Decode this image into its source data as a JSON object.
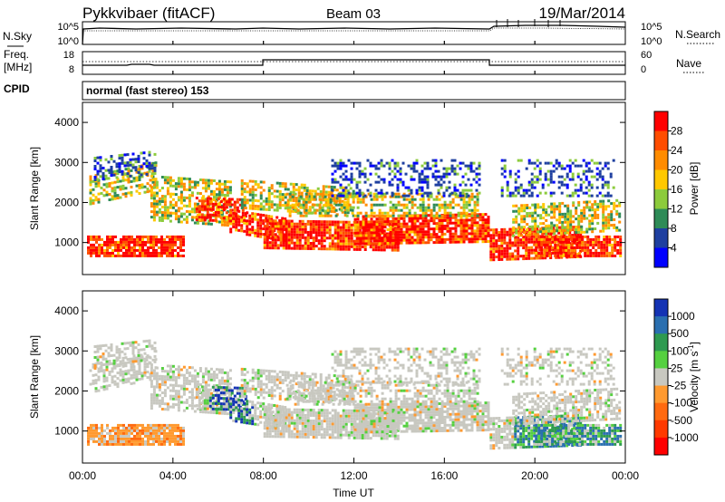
{
  "header": {
    "title": "Pykkvibaer (fitACF)",
    "beam": "Beam 03",
    "date": "19/Mar/2014"
  },
  "strips": {
    "nsky": {
      "label": "N.Sky",
      "ticks": [
        "10^5",
        "10^0"
      ],
      "right_ticks": [
        "10^5",
        "10^0"
      ],
      "right_label": "N.Search"
    },
    "freq": {
      "label_line1": "Freq.",
      "label_line2": "[MHz]",
      "ticks": [
        "18",
        "8"
      ],
      "right_ticks": [
        "60",
        "0"
      ],
      "right_label": "Nave"
    },
    "cpid": {
      "label": "CPID",
      "text": "normal (fast stereo) 153"
    }
  },
  "chart_data": [
    {
      "type": "heatmap",
      "title": "",
      "xlabel": "Time UT",
      "ylabel": "Slant Range [km]",
      "x_ticks": [
        "00:00",
        "04:00",
        "08:00",
        "12:00",
        "16:00",
        "20:00",
        "00:00"
      ],
      "xlim_hours": [
        0,
        24
      ],
      "ylim": [
        200,
        4500
      ],
      "y_ticks": [
        1000,
        2000,
        3000,
        4000
      ],
      "colorbar": {
        "label": "Power [dB]",
        "ticks": [
          "28",
          "24",
          "20",
          "16",
          "12",
          "8",
          "4"
        ],
        "colors": [
          "#ff0000",
          "#ff4d00",
          "#ff8c00",
          "#ffc800",
          "#8ccb3c",
          "#2e8b57",
          "#1e3fa0",
          "#0000ff"
        ]
      }
    },
    {
      "type": "heatmap",
      "title": "",
      "xlabel": "Time UT",
      "ylabel": "Slant Range [km]",
      "x_ticks": [
        "00:00",
        "04:00",
        "08:00",
        "12:00",
        "16:00",
        "20:00",
        "00:00"
      ],
      "xlim_hours": [
        0,
        24
      ],
      "ylim": [
        200,
        4500
      ],
      "y_ticks": [
        1000,
        2000,
        3000,
        4000
      ],
      "colorbar": {
        "label": "Velocity [m s-1]",
        "ticks": [
          "1000",
          "500",
          "100",
          "25",
          "-25",
          "-100",
          "-500",
          "-1000"
        ],
        "colors": [
          "#1433b4",
          "#2a6fb0",
          "#2e9a50",
          "#55d040",
          "#c8c8c0",
          "#ff9a30",
          "#ff6a10",
          "#ff3a00",
          "#ff0000"
        ]
      }
    }
  ]
}
